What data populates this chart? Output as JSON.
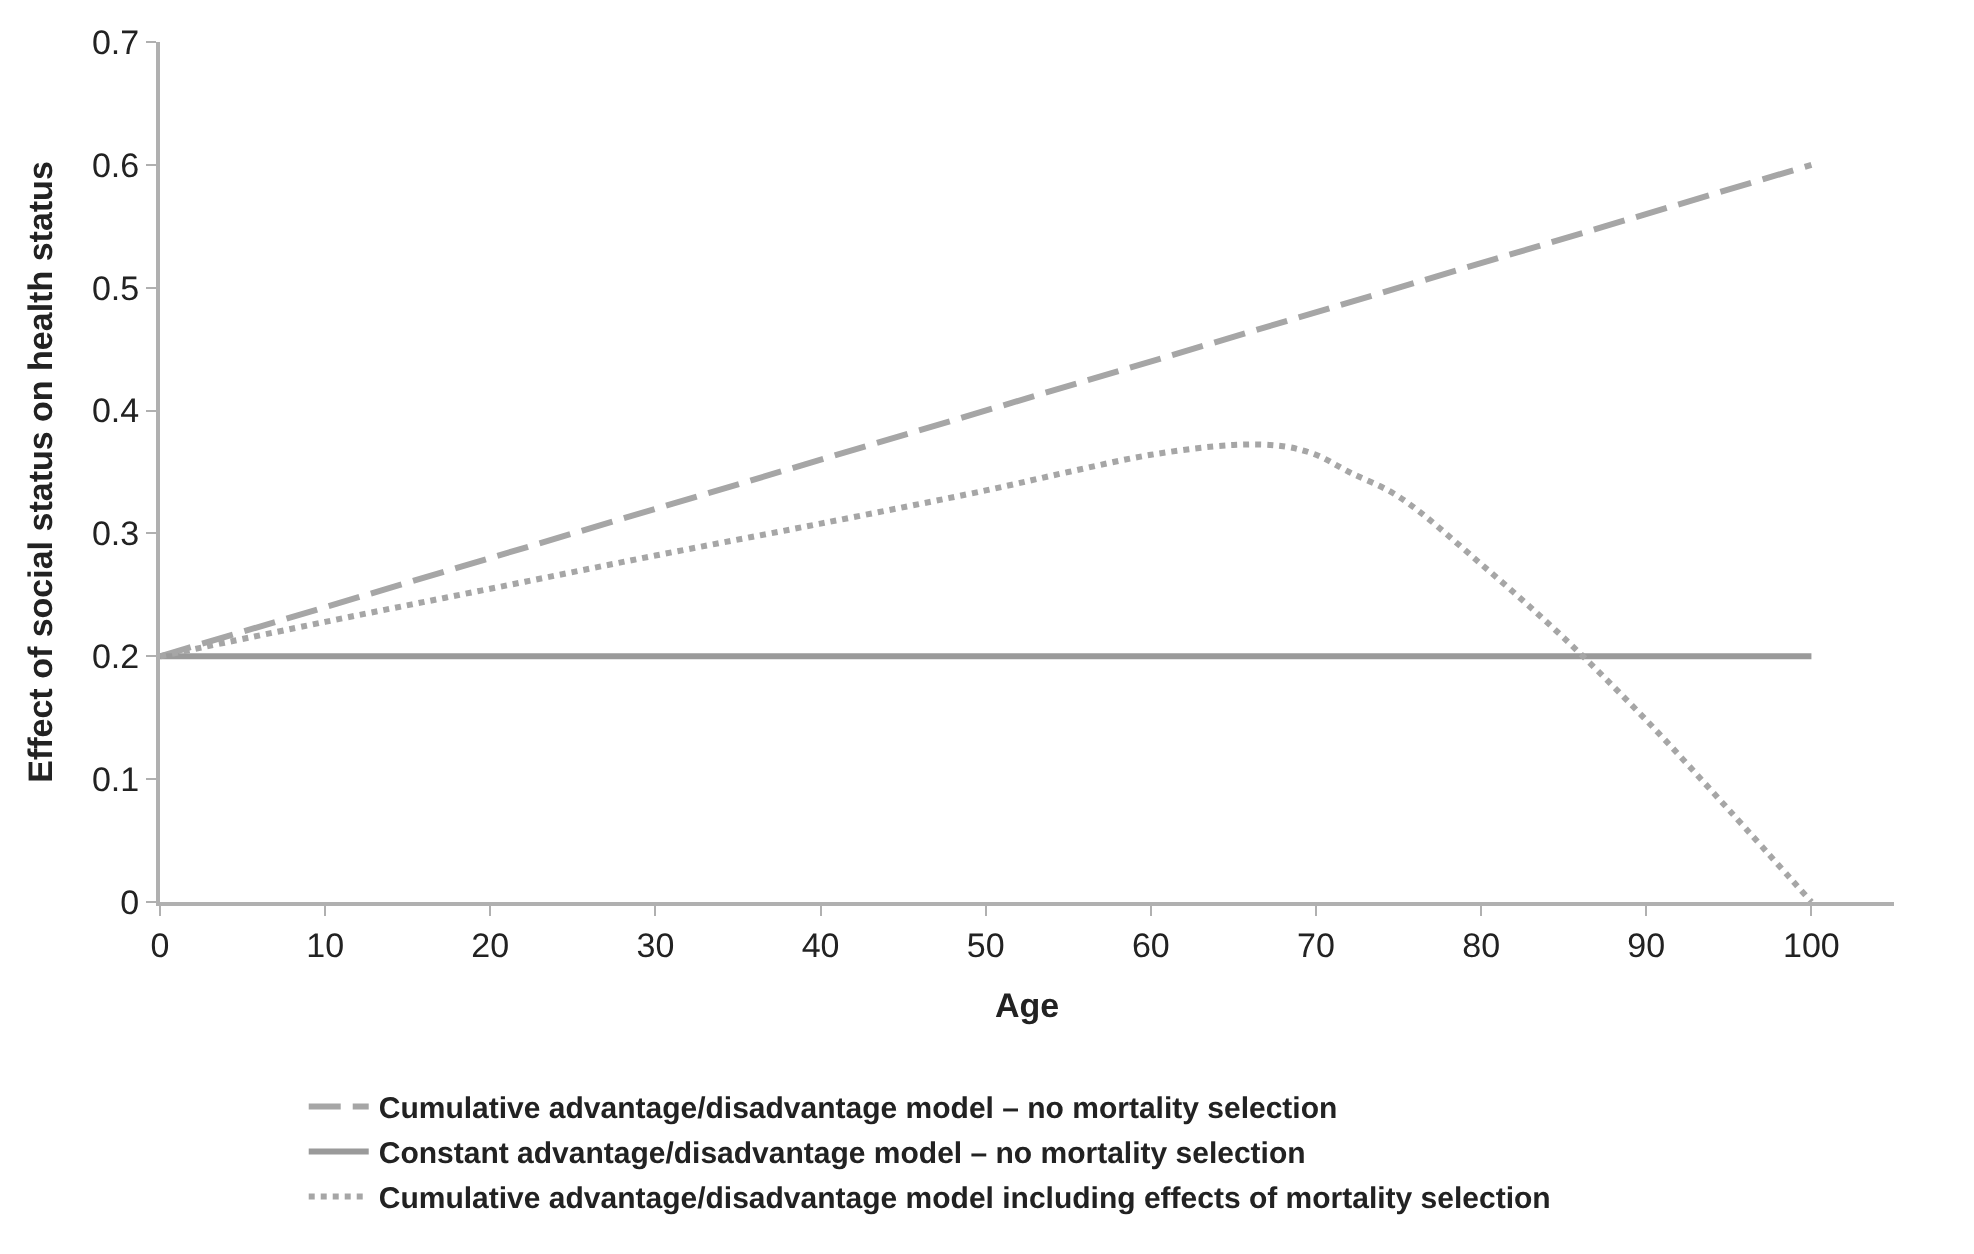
{
  "chart_data": {
    "type": "line",
    "xlabel": "Age",
    "ylabel": "Effect of social status on health status",
    "xlim": [
      0,
      105
    ],
    "xticks": [
      0,
      10,
      20,
      30,
      40,
      50,
      60,
      70,
      80,
      90,
      100
    ],
    "ylim": [
      0,
      0.7
    ],
    "yticks": [
      0,
      0.1,
      0.2,
      0.3,
      0.4,
      0.5,
      0.6,
      0.7
    ],
    "legend": "bottom",
    "marker": "none",
    "series": [
      {
        "name": "Cumulative advantage/disadvantage model – no mortality selection",
        "color": "#a6a6a6",
        "line_style": "dashed",
        "x": [
          0,
          100
        ],
        "values": [
          0.2,
          0.6
        ]
      },
      {
        "name": "Constant advantage/disadvantage model – no mortality selection",
        "color": "#9a9a9a",
        "line_style": "solid",
        "x": [
          0,
          100
        ],
        "values": [
          0.2,
          0.2
        ]
      },
      {
        "name": "Cumulative advantage/disadvantage model including effects of mortality selection",
        "color": "#a6a6a6",
        "line_style": "dotted",
        "x": [
          0,
          10,
          20,
          30,
          40,
          50,
          55,
          60,
          65,
          68,
          70,
          72,
          75,
          80,
          85,
          90,
          95,
          100
        ],
        "values": [
          0.2,
          0.228,
          0.255,
          0.282,
          0.308,
          0.335,
          0.35,
          0.364,
          0.372,
          0.371,
          0.364,
          0.35,
          0.33,
          0.275,
          0.215,
          0.148,
          0.075,
          0.0
        ]
      }
    ]
  }
}
